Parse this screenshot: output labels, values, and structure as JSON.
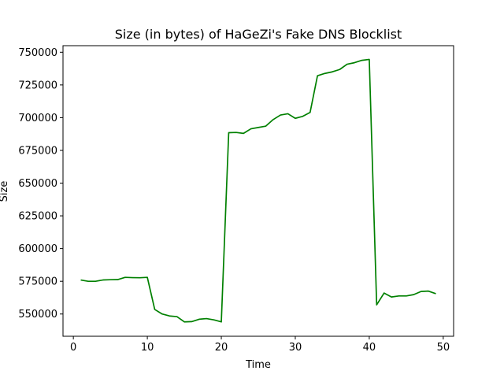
{
  "chart_data": {
    "type": "line",
    "title": "Size (in bytes) of HaGeZi's Fake DNS Blocklist",
    "xlabel": "Time",
    "ylabel": "Size",
    "xlim": [
      -1.4,
      51.4
    ],
    "ylim": [
      533000,
      755000
    ],
    "xticks": [
      0,
      10,
      20,
      30,
      40,
      50
    ],
    "yticks": [
      550000,
      575000,
      600000,
      625000,
      650000,
      675000,
      700000,
      725000,
      750000
    ],
    "grid": false,
    "line_color": "#008000",
    "series": [
      {
        "x": [
          1,
          2,
          3,
          4,
          5,
          6,
          7,
          8,
          9,
          10,
          11,
          12,
          13,
          14,
          15,
          16,
          17,
          18,
          19,
          20,
          21,
          22,
          23,
          24,
          25,
          26,
          27,
          28,
          29,
          30,
          31,
          32,
          33,
          34,
          35,
          36,
          37,
          38,
          39,
          40,
          41,
          42,
          43,
          44,
          45,
          46,
          47,
          48,
          49
        ],
        "values": [
          576000,
          575000,
          575000,
          576000,
          576200,
          576300,
          578000,
          577800,
          577700,
          578000,
          553500,
          550000,
          548500,
          548000,
          544000,
          544200,
          546000,
          546500,
          545500,
          544000,
          688500,
          688700,
          688000,
          691500,
          692500,
          693500,
          698500,
          702000,
          703000,
          699500,
          701000,
          704000,
          732000,
          733800,
          735000,
          736800,
          740800,
          742000,
          743800,
          744500,
          557000,
          566000,
          563000,
          563800,
          563800,
          564800,
          567200,
          567500,
          565500
        ]
      }
    ]
  }
}
